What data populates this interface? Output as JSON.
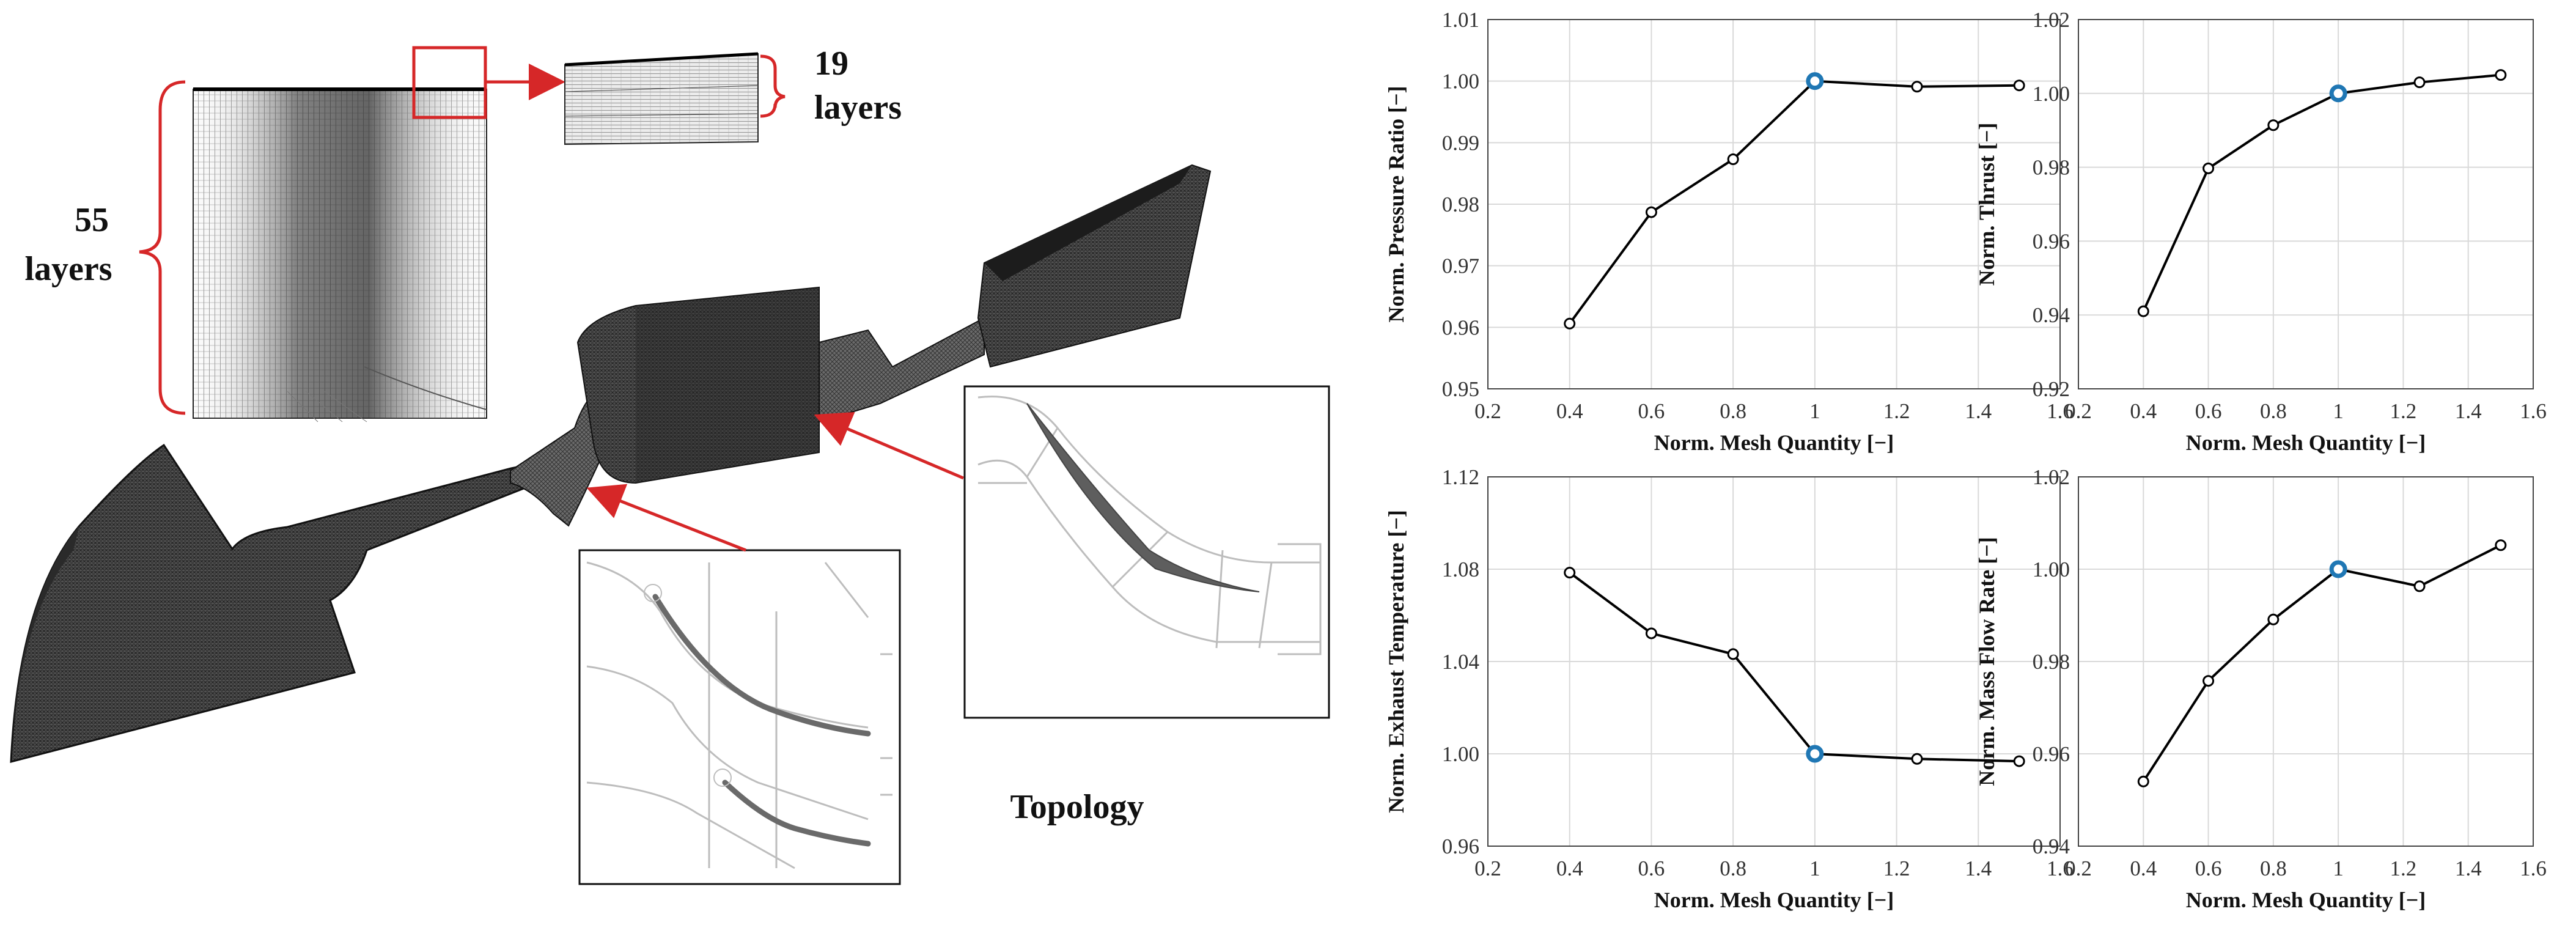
{
  "annotations": {
    "layers_55_count": "55",
    "layers_55_word": "layers",
    "layers_19_count": "19",
    "layers_19_word": "layers",
    "topology": "Topology"
  },
  "colors": {
    "highlight": "#1f77b4",
    "callout": "#d62728",
    "line": "#000000",
    "grid": "#d9d9d9",
    "mesh_dark": "#3a3a3a"
  },
  "chart_data": [
    {
      "type": "line",
      "xlabel": "Norm. Mesh Quantity [−]",
      "ylabel": "Norm. Pressure Ratio [−]",
      "x": [
        0.4,
        0.6,
        0.8,
        1.0,
        1.25,
        1.5
      ],
      "y": [
        0.9606,
        0.9787,
        0.9873,
        1.0,
        0.9991,
        0.9993
      ],
      "highlight_x": 1.0,
      "xlim": [
        0.2,
        1.6
      ],
      "ylim": [
        0.95,
        1.01
      ],
      "xticks": [
        "0.2",
        "0.4",
        "0.6",
        "0.8",
        "1",
        "1.2",
        "1.4",
        "1.6"
      ],
      "yticks": [
        "0.95",
        "0.96",
        "0.97",
        "0.98",
        "0.99",
        "1.00",
        "1.01"
      ],
      "grid": true
    },
    {
      "type": "line",
      "xlabel": "Norm. Mesh Quantity [−]",
      "ylabel": "Norm. Thrust [−]",
      "x": [
        0.4,
        0.6,
        0.8,
        1.0,
        1.25,
        1.5
      ],
      "y": [
        0.941,
        0.9797,
        0.9914,
        1.0,
        1.003,
        1.005
      ],
      "highlight_x": 1.0,
      "xlim": [
        0.2,
        1.6
      ],
      "ylim": [
        0.92,
        1.02
      ],
      "xticks": [
        "0.2",
        "0.4",
        "0.6",
        "0.8",
        "1",
        "1.2",
        "1.4",
        "1.6"
      ],
      "yticks": [
        "0.92",
        "0.94",
        "0.96",
        "0.98",
        "1.00",
        "1.02"
      ],
      "grid": true
    },
    {
      "type": "line",
      "xlabel": "Norm. Mesh Quantity [−]",
      "ylabel": "Norm. Exhaust Temperature [−]",
      "x": [
        0.4,
        0.6,
        0.8,
        1.0,
        1.25,
        1.5
      ],
      "y": [
        1.0785,
        1.0522,
        1.0432,
        1.0,
        0.9978,
        0.9968
      ],
      "highlight_x": 1.0,
      "xlim": [
        0.2,
        1.6
      ],
      "ylim": [
        0.96,
        1.12
      ],
      "xticks": [
        "0.2",
        "0.4",
        "0.6",
        "0.8",
        "1",
        "1.2",
        "1.4",
        "1.6"
      ],
      "yticks": [
        "0.96",
        "1.00",
        "1.04",
        "1.08",
        "1.12"
      ],
      "grid": true
    },
    {
      "type": "line",
      "xlabel": "Norm. Mesh Quantity [−]",
      "ylabel": "Norm. Mass Flow Rate [−]",
      "x": [
        0.4,
        0.6,
        0.8,
        1.0,
        1.25,
        1.5
      ],
      "y": [
        0.954,
        0.9758,
        0.9891,
        1.0,
        0.9963,
        1.0052
      ],
      "highlight_x": 1.0,
      "xlim": [
        0.2,
        1.6
      ],
      "ylim": [
        0.94,
        1.02
      ],
      "xticks": [
        "0.2",
        "0.4",
        "0.6",
        "0.8",
        "1",
        "1.2",
        "1.4",
        "1.6"
      ],
      "yticks": [
        "0.94",
        "0.96",
        "0.98",
        "1.00",
        "1.02"
      ],
      "grid": true
    }
  ]
}
